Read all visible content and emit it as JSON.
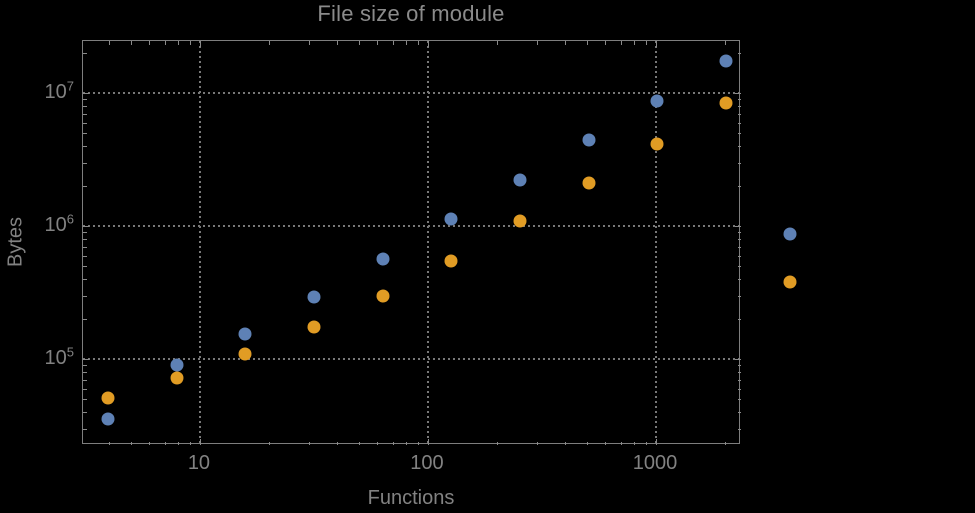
{
  "chart_data": {
    "type": "scatter",
    "title": "File size of module",
    "xlabel": "Functions",
    "ylabel": "Bytes",
    "xscale": "log",
    "yscale": "log",
    "xlim": [
      3.07,
      2360
    ],
    "ylim": [
      22600,
      24600000
    ],
    "grid": true,
    "legend": "none",
    "x_ticks": [
      {
        "value": 10,
        "label": "10"
      },
      {
        "value": 100,
        "label": "100"
      },
      {
        "value": 1000,
        "label": "1000"
      }
    ],
    "y_ticks": [
      {
        "value": 100000,
        "mantissa": "10",
        "exponent": "5"
      },
      {
        "value": 1000000,
        "mantissa": "10",
        "exponent": "6"
      },
      {
        "value": 10000000,
        "mantissa": "10",
        "exponent": "7"
      }
    ],
    "x": [
      4,
      8,
      16,
      32,
      64,
      128,
      256,
      512,
      1024,
      2048,
      3900
    ],
    "series": [
      {
        "name": "blue",
        "color": "#5e81b5",
        "values": [
          35000,
          88000,
          151000,
          289000,
          555000,
          1110000,
          2190000,
          4360000,
          8500000,
          17100000,
          850000
        ]
      },
      {
        "name": "orange",
        "color": "#e19c24",
        "values": [
          50000,
          71000,
          107000,
          170000,
          291000,
          540000,
          1070000,
          2080000,
          4100000,
          8200000,
          370000
        ]
      }
    ]
  }
}
